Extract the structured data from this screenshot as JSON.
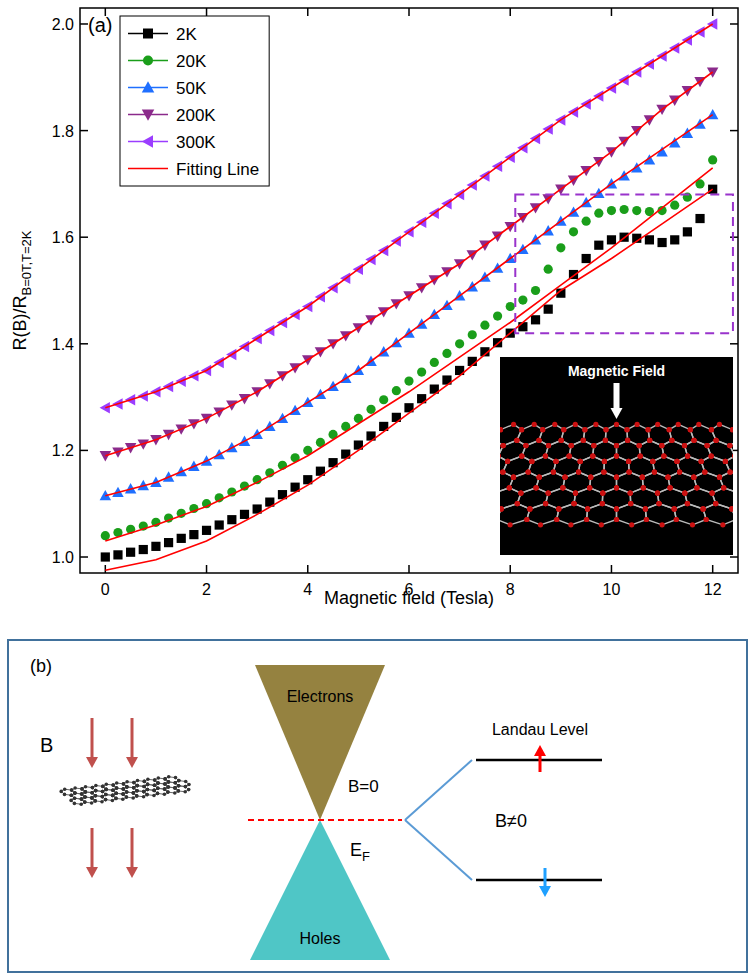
{
  "chart_data": {
    "type": "scatter",
    "panel_label": "(a)",
    "x_label": "Magnetic field (Tesla)",
    "y_label": "R(B)/R",
    "y_label_subscript": "B=0T,T=2K",
    "inset_label": "Magnetic Field",
    "xlim": [
      -0.5,
      12.5
    ],
    "ylim": [
      0.97,
      2.03
    ],
    "xticks": [
      0,
      2,
      4,
      6,
      8,
      10,
      12
    ],
    "yticks": [
      {
        "value": 1,
        "label": "1.0"
      },
      1.2,
      1.4,
      1.6,
      1.8,
      {
        "value": 2,
        "label": "2.0"
      }
    ],
    "grid": false,
    "legend": "top-left",
    "x": [
      0,
      0.25,
      0.5,
      0.75,
      1,
      1.25,
      1.5,
      1.75,
      2,
      2.25,
      2.5,
      2.75,
      3,
      3.25,
      3.5,
      3.75,
      4,
      4.25,
      4.5,
      4.75,
      5,
      5.25,
      5.5,
      5.75,
      6,
      6.25,
      6.5,
      6.75,
      7,
      7.25,
      7.5,
      7.75,
      8,
      8.25,
      8.5,
      8.75,
      9,
      9.25,
      9.5,
      9.75,
      10,
      10.25,
      10.5,
      10.75,
      11,
      11.25,
      11.5,
      11.75,
      12
    ],
    "series": [
      {
        "name": "2K",
        "color": "#000000",
        "marker": "square",
        "values": [
          1,
          1.004,
          1.009,
          1.014,
          1.02,
          1.027,
          1.035,
          1.042,
          1.05,
          1.06,
          1.07,
          1.08,
          1.09,
          1.103,
          1.117,
          1.131,
          1.145,
          1.161,
          1.177,
          1.193,
          1.21,
          1.227,
          1.245,
          1.262,
          1.28,
          1.297,
          1.315,
          1.332,
          1.35,
          1.367,
          1.385,
          1.402,
          1.42,
          1.432,
          1.445,
          1.465,
          1.495,
          1.53,
          1.56,
          1.585,
          1.595,
          1.6,
          1.598,
          1.595,
          1.59,
          1.595,
          1.61,
          1.635,
          1.69
        ]
      },
      {
        "name": "20K",
        "color": "#1a9e1a",
        "marker": "circle",
        "values": [
          1.04,
          1.046,
          1.052,
          1.058,
          1.065,
          1.073,
          1.082,
          1.091,
          1.1,
          1.111,
          1.122,
          1.133,
          1.145,
          1.158,
          1.172,
          1.186,
          1.2,
          1.215,
          1.23,
          1.245,
          1.26,
          1.277,
          1.295,
          1.312,
          1.33,
          1.347,
          1.365,
          1.382,
          1.4,
          1.417,
          1.435,
          1.452,
          1.47,
          1.482,
          1.5,
          1.54,
          1.58,
          1.61,
          1.63,
          1.645,
          1.65,
          1.652,
          1.65,
          1.648,
          1.65,
          1.66,
          1.675,
          1.7,
          1.745
        ]
      },
      {
        "name": "50K",
        "color": "#1f6fff",
        "marker": "triangle-up",
        "values": [
          1.115,
          1.121,
          1.128,
          1.134,
          1.14,
          1.15,
          1.16,
          1.17,
          1.18,
          1.192,
          1.205,
          1.217,
          1.23,
          1.245,
          1.26,
          1.275,
          1.29,
          1.305,
          1.32,
          1.335,
          1.35,
          1.367,
          1.385,
          1.402,
          1.42,
          1.437,
          1.455,
          1.472,
          1.49,
          1.507,
          1.525,
          1.542,
          1.56,
          1.577,
          1.595,
          1.612,
          1.63,
          1.647,
          1.665,
          1.682,
          1.7,
          1.715,
          1.73,
          1.745,
          1.76,
          1.777,
          1.795,
          1.812,
          1.83
        ]
      },
      {
        "name": "200K",
        "color": "#8b2a8b",
        "marker": "triangle-down",
        "values": [
          1.19,
          1.197,
          1.205,
          1.212,
          1.22,
          1.23,
          1.24,
          1.25,
          1.26,
          1.272,
          1.285,
          1.297,
          1.31,
          1.325,
          1.34,
          1.355,
          1.37,
          1.385,
          1.4,
          1.415,
          1.43,
          1.445,
          1.46,
          1.475,
          1.49,
          1.505,
          1.52,
          1.535,
          1.55,
          1.567,
          1.585,
          1.602,
          1.62,
          1.637,
          1.655,
          1.672,
          1.69,
          1.707,
          1.725,
          1.742,
          1.76,
          1.78,
          1.8,
          1.82,
          1.84,
          1.857,
          1.875,
          1.892,
          1.91
        ]
      },
      {
        "name": "300K",
        "color": "#9b3dff",
        "marker": "triangle-left",
        "values": [
          1.28,
          1.287,
          1.295,
          1.302,
          1.31,
          1.32,
          1.33,
          1.34,
          1.35,
          1.365,
          1.38,
          1.395,
          1.41,
          1.425,
          1.44,
          1.455,
          1.47,
          1.488,
          1.505,
          1.523,
          1.54,
          1.558,
          1.575,
          1.593,
          1.61,
          1.628,
          1.645,
          1.663,
          1.68,
          1.698,
          1.715,
          1.733,
          1.75,
          1.768,
          1.785,
          1.803,
          1.82,
          1.835,
          1.85,
          1.865,
          1.88,
          1.895,
          1.91,
          1.925,
          1.94,
          1.955,
          1.97,
          1.985,
          2
        ]
      },
      {
        "name": "Fitting Line",
        "color": "#ff0000",
        "type": "line",
        "line_style": "solid",
        "x": [
          0,
          1,
          2,
          3,
          4,
          5,
          6,
          7,
          8,
          9,
          10,
          11,
          12,
          null,
          0,
          1,
          2,
          3,
          4,
          5,
          6,
          7,
          8,
          9,
          10,
          11,
          12,
          null,
          0,
          1,
          2,
          3,
          4,
          5,
          6,
          7,
          8,
          9,
          10,
          11,
          12,
          null,
          0,
          1,
          2,
          3,
          4,
          5,
          6,
          7,
          8,
          9,
          10,
          11,
          12,
          null,
          0,
          1,
          2,
          3,
          4,
          5,
          6,
          7,
          8,
          9,
          10,
          11,
          12
        ],
        "values": [
          0.975,
          0.995,
          1.03,
          1.08,
          1.135,
          1.2,
          1.27,
          1.34,
          1.42,
          1.5,
          1.56,
          1.625,
          1.69,
          null,
          1.03,
          1.06,
          1.095,
          1.14,
          1.19,
          1.25,
          1.31,
          1.375,
          1.44,
          1.51,
          1.58,
          1.655,
          1.73,
          null,
          1.115,
          1.14,
          1.18,
          1.23,
          1.29,
          1.35,
          1.42,
          1.49,
          1.56,
          1.63,
          1.7,
          1.765,
          1.83,
          null,
          1.19,
          1.22,
          1.26,
          1.31,
          1.37,
          1.43,
          1.49,
          1.55,
          1.62,
          1.69,
          1.76,
          1.84,
          1.91,
          null,
          1.28,
          1.31,
          1.35,
          1.41,
          1.47,
          1.54,
          1.61,
          1.68,
          1.75,
          1.82,
          1.88,
          1.94,
          2
        ]
      }
    ],
    "highlight_box": {
      "x": [
        8.1,
        12.4
      ],
      "y": [
        1.42,
        1.68
      ]
    }
  },
  "diagram": {
    "panel_label": "(b)",
    "field_label": "B",
    "upper_cone": "Electrons",
    "lower_cone": "Holes",
    "zero_field": "B=0",
    "fermi_level": {
      "main": "E",
      "subscript": "F"
    },
    "level_label": "Landau Level",
    "nonzero_field": "B≠0"
  }
}
